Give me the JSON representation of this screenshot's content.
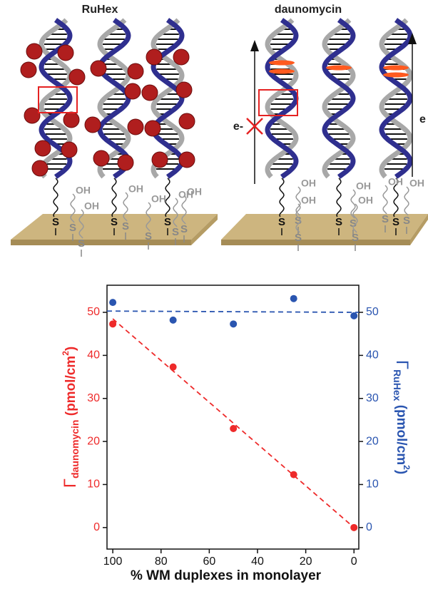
{
  "illustration": {
    "panels": [
      {
        "title": "RuHex",
        "thiol_label": "S",
        "hydroxyl_label": "OH"
      },
      {
        "title": "daunomycin",
        "thiol_label": "S",
        "hydroxyl_label": "OH",
        "blocked_electron_label": "e-",
        "electron_label": "e"
      }
    ]
  },
  "chart_data": {
    "type": "scatter",
    "x_label": "% WM duplexes in monolayer",
    "y_label": {
      "symbol": "Γ",
      "subscript": "daunomycin",
      "unit": " (pmol/cm",
      "superscript": "2",
      "close": ")"
    },
    "y2_label": {
      "symbol": "Γ",
      "subscript": "RuHex",
      "unit": " (pmol/cm",
      "superscript": "2",
      "close": ")"
    },
    "xlim": [
      102.4,
      -2
    ],
    "xticks": [
      100,
      80,
      60,
      40,
      20,
      0
    ],
    "ylim": [
      -5,
      56.3
    ],
    "yticks": [
      0,
      10,
      20,
      30,
      40,
      50
    ],
    "y2lim": [
      -5,
      56.3
    ],
    "y2ticks": [
      0,
      10,
      20,
      30,
      40,
      50
    ],
    "series": [
      {
        "color": "#ee2a2a",
        "x": [
          100,
          75,
          50,
          25,
          0
        ],
        "values": [
          47.3,
          37.3,
          23,
          12.3,
          0
        ]
      },
      {
        "color": "#2a55b0",
        "axis": "y2",
        "x": [
          100,
          75,
          50,
          25,
          0
        ],
        "values": [
          52.3,
          48.2,
          47.3,
          53.2,
          49.2
        ]
      }
    ],
    "fits": [
      {
        "color": "#ee2a2a",
        "x": [
          100,
          0
        ],
        "values": [
          48.5,
          0
        ]
      },
      {
        "color": "#2a55b0",
        "axis": "y2",
        "x": [
          102.4,
          -2
        ],
        "values": [
          50.3,
          50
        ]
      }
    ]
  }
}
